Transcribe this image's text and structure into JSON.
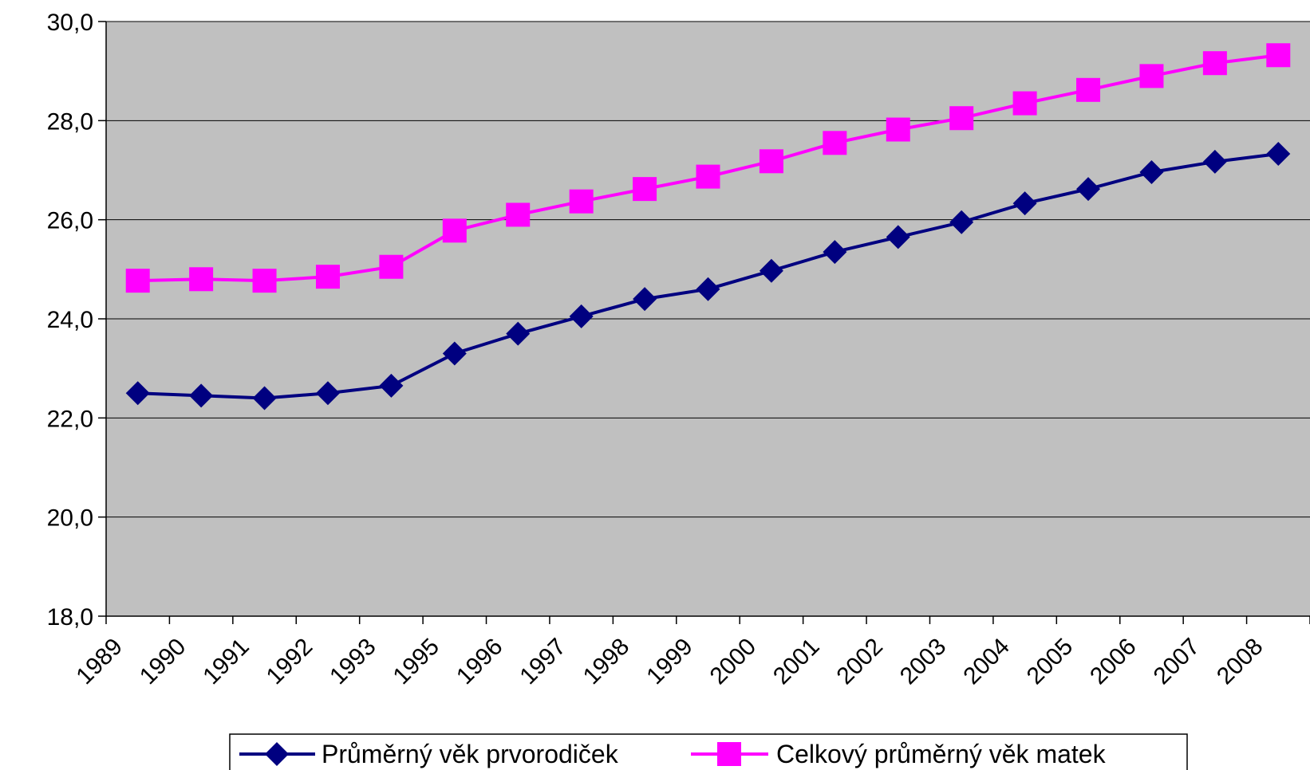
{
  "chart_data": {
    "type": "line",
    "categories": [
      "1989",
      "1990",
      "1991",
      "1992",
      "1993",
      "1995",
      "1996",
      "1997",
      "1998",
      "1999",
      "2000",
      "2001",
      "2002",
      "2003",
      "2004",
      "2005",
      "2006",
      "2007",
      "2008"
    ],
    "series": [
      {
        "name": "Průměrný věk prvorodiček",
        "color": "#000080",
        "marker": "diamond",
        "values": [
          22.5,
          22.45,
          22.4,
          22.5,
          22.65,
          23.3,
          23.7,
          24.05,
          24.4,
          24.6,
          24.97,
          25.35,
          25.65,
          25.95,
          26.33,
          26.62,
          26.96,
          27.17,
          27.33
        ]
      },
      {
        "name": "Celkový průměrný věk matek",
        "color": "#FF00FF",
        "marker": "square",
        "values": [
          24.77,
          24.8,
          24.77,
          24.85,
          25.05,
          25.78,
          26.1,
          26.37,
          26.62,
          26.87,
          27.18,
          27.55,
          27.82,
          28.05,
          28.35,
          28.62,
          28.9,
          29.16,
          29.32
        ]
      }
    ],
    "yticks": [
      "18,0",
      "20,0",
      "22,0",
      "24,0",
      "26,0",
      "28,0",
      "30,0"
    ],
    "ylim": [
      18,
      30
    ],
    "grid": true,
    "plot_background": "#C0C0C0",
    "legend_position": "bottom",
    "title": "",
    "xlabel": "",
    "ylabel": ""
  }
}
